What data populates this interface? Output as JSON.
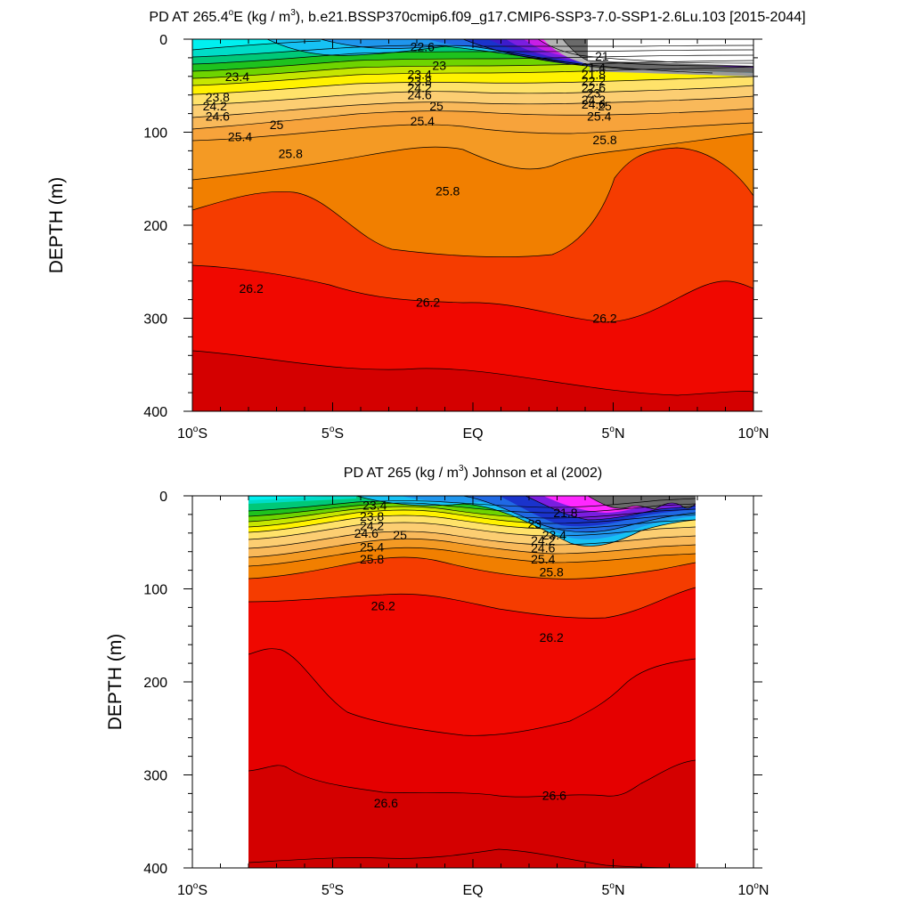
{
  "chart_data": [
    {
      "type": "contour",
      "title": {
        "pre": "PD AT 265.4",
        "sup1": "o",
        "mid": "E (kg / m",
        "sup2": "3",
        "post": "), b.e21.BSSP370cmip6.f09_g17.CMIP6-SSP3-7.0-SSP1-2.6Lu.103 [2015-2044]"
      },
      "xlabel": "",
      "ylabel": "DEPTH (m)",
      "xlim": [
        -10,
        10
      ],
      "ylim": [
        0,
        400
      ],
      "y_reversed": true,
      "data_lon_range": [
        -10,
        10
      ],
      "xticks": [
        {
          "value": -10,
          "text": "10",
          "sup": "o",
          "suffix": "S"
        },
        {
          "value": -5,
          "text": "5",
          "sup": "o",
          "suffix": "S"
        },
        {
          "value": 0,
          "text": "EQ",
          "sup": "",
          "suffix": ""
        },
        {
          "value": 5,
          "text": "5",
          "sup": "o",
          "suffix": "N"
        },
        {
          "value": 10,
          "text": "10",
          "sup": "o",
          "suffix": "N"
        }
      ],
      "yticks": [
        {
          "value": 0,
          "text": "0"
        },
        {
          "value": 100,
          "text": "100"
        },
        {
          "value": 200,
          "text": "200"
        },
        {
          "value": 300,
          "text": "300"
        },
        {
          "value": 400,
          "text": "400"
        }
      ],
      "contour_labels": [
        {
          "text": "22.6",
          "lon": -1.8,
          "depth": 8
        },
        {
          "text": "23",
          "lon": -1.2,
          "depth": 28
        },
        {
          "text": "23.4",
          "lon": -8.4,
          "depth": 40
        },
        {
          "text": "23.4",
          "lon": -1.9,
          "depth": 38
        },
        {
          "text": "23.8",
          "lon": -1.9,
          "depth": 45
        },
        {
          "text": "24.2",
          "lon": -1.9,
          "depth": 52
        },
        {
          "text": "24.6",
          "lon": -1.9,
          "depth": 60
        },
        {
          "text": "23.8",
          "lon": -9.1,
          "depth": 62
        },
        {
          "text": "24.2",
          "lon": -9.2,
          "depth": 72
        },
        {
          "text": "24.6",
          "lon": -9.1,
          "depth": 83
        },
        {
          "text": "25",
          "lon": -7.0,
          "depth": 92
        },
        {
          "text": "25",
          "lon": -1.3,
          "depth": 72
        },
        {
          "text": "25.4",
          "lon": -1.8,
          "depth": 88
        },
        {
          "text": "25.4",
          "lon": -8.3,
          "depth": 105
        },
        {
          "text": "25.8",
          "lon": -6.5,
          "depth": 123
        },
        {
          "text": "25.8",
          "lon": -0.9,
          "depth": 163
        },
        {
          "text": "25.8",
          "lon": 4.7,
          "depth": 108
        },
        {
          "text": "21",
          "lon": 4.6,
          "depth": 18
        },
        {
          "text": "21.4",
          "lon": 4.3,
          "depth": 30
        },
        {
          "text": "21.8",
          "lon": 4.3,
          "depth": 38
        },
        {
          "text": "22.2",
          "lon": 4.3,
          "depth": 45
        },
        {
          "text": "22.6",
          "lon": 4.3,
          "depth": 52
        },
        {
          "text": "23",
          "lon": 4.3,
          "depth": 58
        },
        {
          "text": "24.2",
          "lon": 4.3,
          "depth": 65
        },
        {
          "text": "24.6",
          "lon": 4.3,
          "depth": 70
        },
        {
          "text": "25",
          "lon": 4.7,
          "depth": 72
        },
        {
          "text": "25.4",
          "lon": 4.5,
          "depth": 83
        },
        {
          "text": "26.2",
          "lon": -7.9,
          "depth": 268
        },
        {
          "text": "26.2",
          "lon": -1.6,
          "depth": 283
        },
        {
          "text": "26.2",
          "lon": 4.7,
          "depth": 300
        }
      ]
    },
    {
      "type": "contour",
      "title": {
        "pre": "PD AT 265 (kg / m",
        "sup1": "",
        "mid": "",
        "sup2": "3",
        "post": ") Johnson et al (2002)"
      },
      "xlabel": "",
      "ylabel": "DEPTH (m)",
      "xlim": [
        -10,
        10
      ],
      "ylim": [
        0,
        400
      ],
      "y_reversed": true,
      "data_lon_range": [
        -8,
        8
      ],
      "xticks": [
        {
          "value": -10,
          "text": "10",
          "sup": "o",
          "suffix": "S"
        },
        {
          "value": -5,
          "text": "5",
          "sup": "o",
          "suffix": "S"
        },
        {
          "value": 0,
          "text": "EQ",
          "sup": "",
          "suffix": ""
        },
        {
          "value": 5,
          "text": "5",
          "sup": "o",
          "suffix": "N"
        },
        {
          "value": 10,
          "text": "10",
          "sup": "o",
          "suffix": "N"
        }
      ],
      "yticks": [
        {
          "value": 0,
          "text": "0"
        },
        {
          "value": 100,
          "text": "100"
        },
        {
          "value": 200,
          "text": "200"
        },
        {
          "value": 300,
          "text": "300"
        },
        {
          "value": 400,
          "text": "400"
        }
      ],
      "contour_labels": [
        {
          "text": "23.4",
          "lon": -3.5,
          "depth": 10
        },
        {
          "text": "23.8",
          "lon": -3.6,
          "depth": 22
        },
        {
          "text": "24.2",
          "lon": -3.6,
          "depth": 32
        },
        {
          "text": "24.6",
          "lon": -3.8,
          "depth": 40
        },
        {
          "text": "25",
          "lon": -2.6,
          "depth": 42
        },
        {
          "text": "25.4",
          "lon": -3.6,
          "depth": 55
        },
        {
          "text": "25.8",
          "lon": -3.6,
          "depth": 68
        },
        {
          "text": "21.8",
          "lon": 3.3,
          "depth": 18
        },
        {
          "text": "23",
          "lon": 2.2,
          "depth": 30
        },
        {
          "text": "23.4",
          "lon": 2.9,
          "depth": 42
        },
        {
          "text": "24.2",
          "lon": 2.5,
          "depth": 48
        },
        {
          "text": "24.6",
          "lon": 2.5,
          "depth": 56
        },
        {
          "text": "25.4",
          "lon": 2.5,
          "depth": 68
        },
        {
          "text": "25.8",
          "lon": 2.8,
          "depth": 82
        },
        {
          "text": "26.2",
          "lon": -3.2,
          "depth": 118
        },
        {
          "text": "26.2",
          "lon": 2.8,
          "depth": 152
        },
        {
          "text": "26.6",
          "lon": -3.1,
          "depth": 330
        },
        {
          "text": "26.6",
          "lon": 2.9,
          "depth": 322
        }
      ]
    }
  ]
}
